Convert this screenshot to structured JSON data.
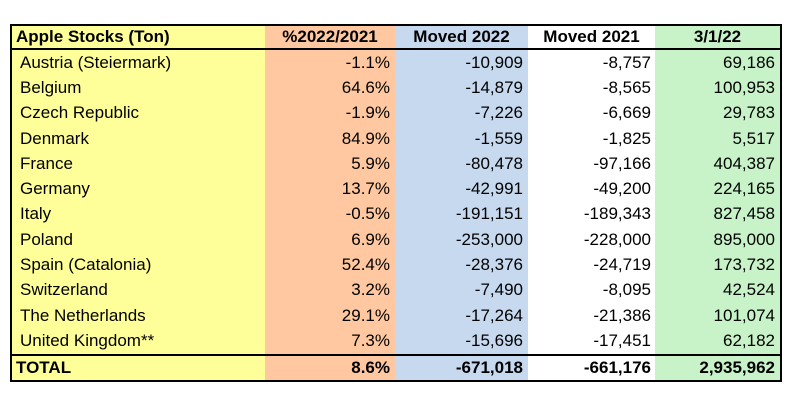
{
  "table": {
    "headers": [
      "Apple Stocks (Ton)",
      "%2022/2021",
      "Moved 2022",
      "Moved 2021",
      "3/1/22"
    ],
    "rows": [
      [
        "Austria (Steiermark)",
        "-1.1%",
        "-10,909",
        "-8,757",
        "69,186"
      ],
      [
        "Belgium",
        "64.6%",
        "-14,879",
        "-8,565",
        "100,953"
      ],
      [
        "Czech Republic",
        "-1.9%",
        "-7,226",
        "-6,669",
        "29,783"
      ],
      [
        "Denmark",
        "84.9%",
        "-1,559",
        "-1,825",
        "5,517"
      ],
      [
        "France",
        "5.9%",
        "-80,478",
        "-97,166",
        "404,387"
      ],
      [
        "Germany",
        "13.7%",
        "-42,991",
        "-49,200",
        "224,165"
      ],
      [
        "Italy",
        "-0.5%",
        "-191,151",
        "-189,343",
        "827,458"
      ],
      [
        "Poland",
        "6.9%",
        "-253,000",
        "-228,000",
        "895,000"
      ],
      [
        "Spain (Catalonia)",
        "52.4%",
        "-28,376",
        "-24,719",
        "173,732"
      ],
      [
        "Switzerland",
        "3.2%",
        "-7,490",
        "-8,095",
        "42,524"
      ],
      [
        "The Netherlands",
        "29.1%",
        "-17,264",
        "-21,386",
        "101,074"
      ],
      [
        "United Kingdom**",
        "7.3%",
        "-15,696",
        "-17,451",
        "62,182"
      ]
    ],
    "total": [
      "TOTAL",
      "8.6%",
      "-671,018",
      "-661,176",
      "2,935,962"
    ],
    "column_colors": {
      "country": "#ffff99",
      "pct": "#ffc8a0",
      "moved_2022": "#c6d9ef",
      "moved_2021": "#ffffff",
      "stock": "#c8f2c8"
    }
  }
}
